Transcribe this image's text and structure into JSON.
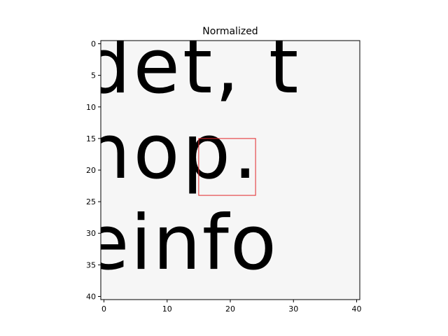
{
  "chart_data": {
    "type": "heatmap",
    "title": "Normalized",
    "xlabel": "",
    "ylabel": "",
    "colormap": "gray",
    "xlim": [
      -0.5,
      40.5
    ],
    "ylim": [
      40.5,
      -0.5
    ],
    "xticks": [
      0,
      10,
      20,
      30,
      40
    ],
    "yticks": [
      0,
      5,
      10,
      15,
      20,
      25,
      30,
      35,
      40
    ],
    "xtick_labels": [
      "0",
      "10",
      "20",
      "30",
      "40"
    ],
    "ytick_labels": [
      "0",
      "5",
      "10",
      "15",
      "20",
      "25",
      "30",
      "35",
      "40"
    ],
    "grid": false,
    "image_content": {
      "description_lines": [
        {
          "text": "det, t",
          "row_range": [
            0,
            9
          ]
        },
        {
          "text": "nop.",
          "row_range": [
            15,
            24
          ]
        },
        {
          "text": "einfo",
          "row_range": [
            26,
            38
          ]
        }
      ]
    },
    "highlight_box": {
      "x_range": [
        15,
        24
      ],
      "y_range": [
        15,
        24
      ],
      "color": "#e3262a"
    }
  }
}
